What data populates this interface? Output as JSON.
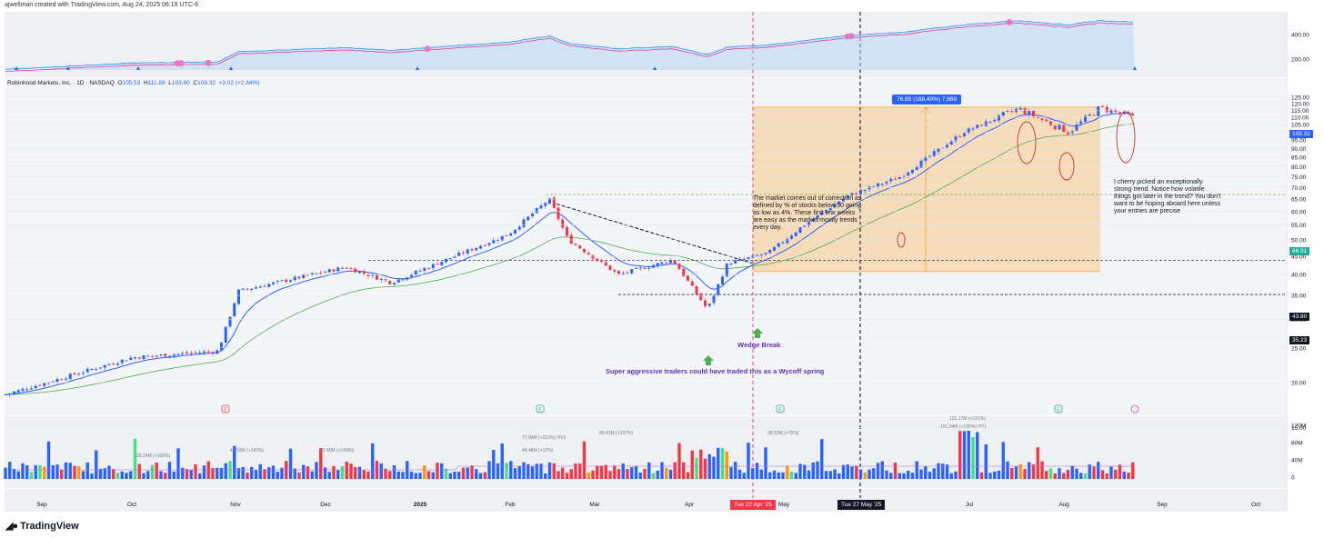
{
  "header": {
    "credit": "ajwellman created with TradingView.com, Aug 24, 2025 06:19 UTC-6",
    "symbol": "Robinhood Markets, Inc. · 1D · NASDAQ",
    "o_label": "O",
    "o_value": "105.53",
    "h_label": "H",
    "h_value": "111.88",
    "l_label": "L",
    "l_value": "103.80",
    "c_label": "C",
    "c_value": "109.32",
    "change": "+3.02 (+2.84%)"
  },
  "annotations": {
    "note_correction": "The market comes out of correction as defined by % of stocks below 50 going as low as 4%.  These first few weeks are easy as the market mostly trends every day.",
    "note_cherry": "I cherry picked an exceptionally strong trend.  Notice how volatile things got later in the trend? You don't want to be hoping aboard here unless your entries are precise",
    "wedge_break": "Wedge Break",
    "wycoff": "Super aggressive traders could have traded this as a Wycoff spring",
    "measure_label": "76.89 (188.40%) 7,689",
    "date_red": "Tue 22 Apr '25",
    "date_black": "Tue 27 May '25"
  },
  "price_boxes": {
    "last": "109.32",
    "level_66": "66.91",
    "level_43": "43.80",
    "level_35": "35.23"
  },
  "footer": {
    "brand": "TradingView"
  },
  "colors": {
    "up": "#2962ff",
    "down": "#f23645",
    "ema_fast": "#2962ff",
    "ema_slow": "#4caf50",
    "measure_fill": "#f6d7b0",
    "pink_osc": "#e040a0",
    "blue_osc": "#2196f3"
  },
  "chart_data": {
    "type": "candlestick",
    "title": "Robinhood Markets, Inc. · 1D · NASDAQ",
    "price_axis": {
      "ticks": [
        "125.00",
        "120.00",
        "115.00",
        "110.00",
        "105.00",
        "100.00",
        "95.00",
        "90.00",
        "85.00",
        "80.00",
        "75.00",
        "70.00",
        "65.00",
        "60.00",
        "55.00",
        "50.00",
        "45.00",
        "40.00",
        "35.00",
        "30.00",
        "25.00",
        "20.00",
        "15.00"
      ],
      "scale": "log"
    },
    "volume_axis": {
      "ticks": [
        "120M",
        "80M",
        "40M",
        "0"
      ]
    },
    "indicator_axis": {
      "ticks": [
        "400.00",
        "200.00"
      ]
    },
    "time_axis": {
      "ticks": [
        "Sep",
        "Oct",
        "Nov",
        "Dec",
        "2025",
        "Feb",
        "Mar",
        "Apr",
        "May",
        "Jul",
        "Aug",
        "Sep",
        "Oct"
      ]
    },
    "price_path": [
      [
        "Sep",
        18.5
      ],
      [
        "Oct",
        23.5
      ],
      [
        "Nov",
        24.5
      ],
      [
        "Nov",
        36
      ],
      [
        "Dec",
        42
      ],
      [
        "2025",
        38
      ],
      [
        "2025",
        44
      ],
      [
        "Feb",
        52
      ],
      [
        "Feb",
        65
      ],
      [
        "Mar",
        50
      ],
      [
        "Mar",
        40
      ],
      [
        "Apr",
        44
      ],
      [
        "Apr",
        32
      ],
      [
        "Apr",
        43
      ],
      [
        "May",
        46
      ],
      [
        "May",
        54
      ],
      [
        "May",
        66
      ],
      [
        "Jul",
        75
      ],
      [
        "Jul",
        100
      ],
      [
        "Aug",
        116
      ],
      [
        "Aug",
        100
      ],
      [
        "Aug",
        117
      ],
      [
        "Aug",
        109.32
      ]
    ],
    "levels": [
      {
        "price": 66.91,
        "style": "dashed",
        "color": "#4caf50"
      },
      {
        "price": 43.8,
        "style": "dashed",
        "color": "#131722"
      },
      {
        "price": 35.23,
        "style": "dashed",
        "color": "#131722"
      }
    ],
    "volume_labels": [
      "39.24M (+166%)",
      "49.59M (+243%)",
      "50.45M (+149%)",
      "77.96M (+223%) HV1",
      "48.48M (+12%)",
      "89.41M (+197%)",
      "98.53M (+78%)",
      "121.17M (+151%)",
      "101.94M (+195%) HV1"
    ],
    "vertical_markers": [
      "Tue 22 Apr '25",
      "Tue 27 May '25"
    ],
    "earnings_markers": [
      "E",
      "E",
      "E",
      "E"
    ]
  }
}
